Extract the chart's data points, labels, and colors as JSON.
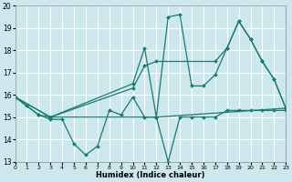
{
  "xlabel": "Humidex (Indice chaleur)",
  "bg_color": "#cce8ec",
  "line_color": "#1a7a6e",
  "grid_color": "#ffffff",
  "xlim": [
    0,
    23
  ],
  "ylim": [
    13,
    20
  ],
  "xticks": [
    0,
    1,
    2,
    3,
    4,
    5,
    6,
    7,
    8,
    9,
    10,
    11,
    12,
    13,
    14,
    15,
    16,
    17,
    18,
    19,
    20,
    21,
    22,
    23
  ],
  "yticks": [
    13,
    14,
    15,
    16,
    17,
    18,
    19,
    20
  ],
  "series": [
    {
      "x": [
        0,
        1,
        2,
        3,
        4,
        5,
        6,
        7,
        8,
        9,
        10,
        11,
        12,
        13,
        14,
        15,
        16,
        17,
        18,
        19,
        20,
        21,
        22,
        23
      ],
      "y": [
        15.9,
        15.5,
        15.1,
        14.9,
        14.9,
        13.8,
        13.3,
        13.7,
        15.3,
        15.1,
        15.9,
        15.0,
        15.0,
        13.0,
        15.0,
        15.0,
        15.0,
        15.0,
        15.3,
        15.3,
        15.3,
        15.3,
        15.3,
        15.3
      ]
    },
    {
      "x": [
        0,
        2,
        3,
        12,
        23
      ],
      "y": [
        15.9,
        15.1,
        15.0,
        15.0,
        15.4
      ]
    },
    {
      "x": [
        0,
        3,
        10,
        11,
        12,
        17,
        18,
        19,
        20,
        21,
        22,
        23
      ],
      "y": [
        15.9,
        15.0,
        16.3,
        17.3,
        17.5,
        17.5,
        18.1,
        19.3,
        18.5,
        17.5,
        16.7,
        15.4
      ]
    },
    {
      "x": [
        0,
        3,
        10,
        11,
        12,
        13,
        14,
        15,
        16,
        17,
        18,
        19,
        20,
        21,
        22,
        23
      ],
      "y": [
        15.9,
        15.0,
        16.5,
        18.1,
        15.0,
        19.5,
        19.6,
        16.4,
        16.4,
        16.9,
        18.1,
        19.3,
        18.5,
        17.5,
        16.7,
        15.4
      ]
    }
  ]
}
